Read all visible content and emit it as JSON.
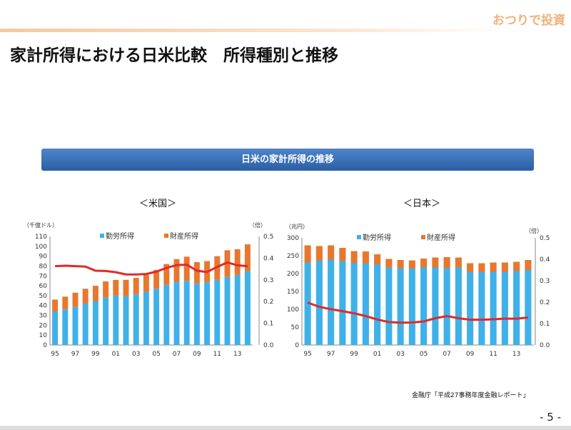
{
  "brand": "おつりで投資",
  "title": "家計所得における日米比較　所得種別と推移",
  "banner": "日米の家計所得の推移",
  "source": "金融庁「平成27事務年度金融レポート」",
  "page": "- 5 -",
  "colors": {
    "labor": "#3fb1e8",
    "property": "#e8772e",
    "ratio": "#e02a2a"
  },
  "chart_data": [
    {
      "type": "bar",
      "subtitle": "＜米国＞",
      "stacked": true,
      "ylabel": "（千億ドル）",
      "y2label": "（倍）",
      "ylim": [
        0,
        110
      ],
      "yticks": [
        0,
        10,
        20,
        30,
        40,
        50,
        60,
        70,
        80,
        90,
        100,
        110
      ],
      "y2lim": [
        0,
        0.5
      ],
      "y2ticks": [
        "0.0",
        "0.1",
        "0.2",
        "0.3",
        "0.4",
        "0.5"
      ],
      "categories": [
        "95",
        "96",
        "97",
        "98",
        "99",
        "00",
        "01",
        "02",
        "03",
        "04",
        "05",
        "06",
        "07",
        "08",
        "09",
        "10",
        "11",
        "12",
        "13",
        "14"
      ],
      "xticklabels": [
        "95",
        "97",
        "99",
        "01",
        "03",
        "05",
        "07",
        "09",
        "11",
        "13"
      ],
      "series": [
        {
          "name": "勤労所得",
          "values": [
            34,
            36,
            38.5,
            42,
            44.5,
            48,
            50,
            49.5,
            51.5,
            54,
            57,
            61,
            64,
            65,
            62.5,
            63.5,
            66,
            69,
            71,
            75
          ]
        },
        {
          "name": "財産所得",
          "values": [
            12,
            13,
            14.5,
            15,
            15.5,
            16.5,
            16,
            16.5,
            16.5,
            17,
            19,
            21,
            23,
            24.5,
            21.5,
            21.5,
            24,
            27,
            26,
            27
          ]
        },
        {
          "axis": "right",
          "type": "line",
          "values": [
            0.363,
            0.365,
            0.363,
            0.361,
            0.342,
            0.341,
            0.335,
            0.325,
            0.325,
            0.327,
            0.338,
            0.355,
            0.368,
            0.37,
            0.342,
            0.336,
            0.36,
            0.38,
            0.367,
            0.363
          ]
        }
      ]
    },
    {
      "type": "bar",
      "subtitle": "＜日本＞",
      "stacked": true,
      "ylabel": "（兆円）",
      "y2label": "（倍）",
      "ylim": [
        0,
        300
      ],
      "yticks": [
        0,
        50,
        100,
        150,
        200,
        250,
        300
      ],
      "y2lim": [
        0,
        0.5
      ],
      "y2ticks": [
        "0.0",
        "0.1",
        "0.2",
        "0.3",
        "0.4",
        "0.5"
      ],
      "categories": [
        "95",
        "96",
        "97",
        "98",
        "99",
        "00",
        "01",
        "02",
        "03",
        "04",
        "05",
        "06",
        "07",
        "08",
        "09",
        "10",
        "11",
        "12",
        "13",
        "14"
      ],
      "xticklabels": [
        "95",
        "97",
        "99",
        "01",
        "03",
        "05",
        "07",
        "09",
        "11",
        "13"
      ],
      "series": [
        {
          "name": "勤労所得",
          "values": [
            231,
            236,
            239,
            235,
            230,
            229,
            226,
            217,
            215,
            214,
            217,
            217,
            215,
            217,
            205,
            205,
            205,
            205,
            207,
            210
          ]
        },
        {
          "name": "財産所得",
          "values": [
            48,
            41,
            40,
            37,
            33,
            33,
            28,
            24,
            23,
            23,
            25,
            28,
            31,
            28,
            24,
            24,
            26,
            26,
            26,
            28
          ]
        },
        {
          "axis": "right",
          "type": "line",
          "values": [
            0.198,
            0.178,
            0.167,
            0.158,
            0.148,
            0.135,
            0.119,
            0.107,
            0.104,
            0.105,
            0.11,
            0.125,
            0.135,
            0.125,
            0.118,
            0.118,
            0.12,
            0.123,
            0.123,
            0.128
          ]
        }
      ]
    }
  ]
}
